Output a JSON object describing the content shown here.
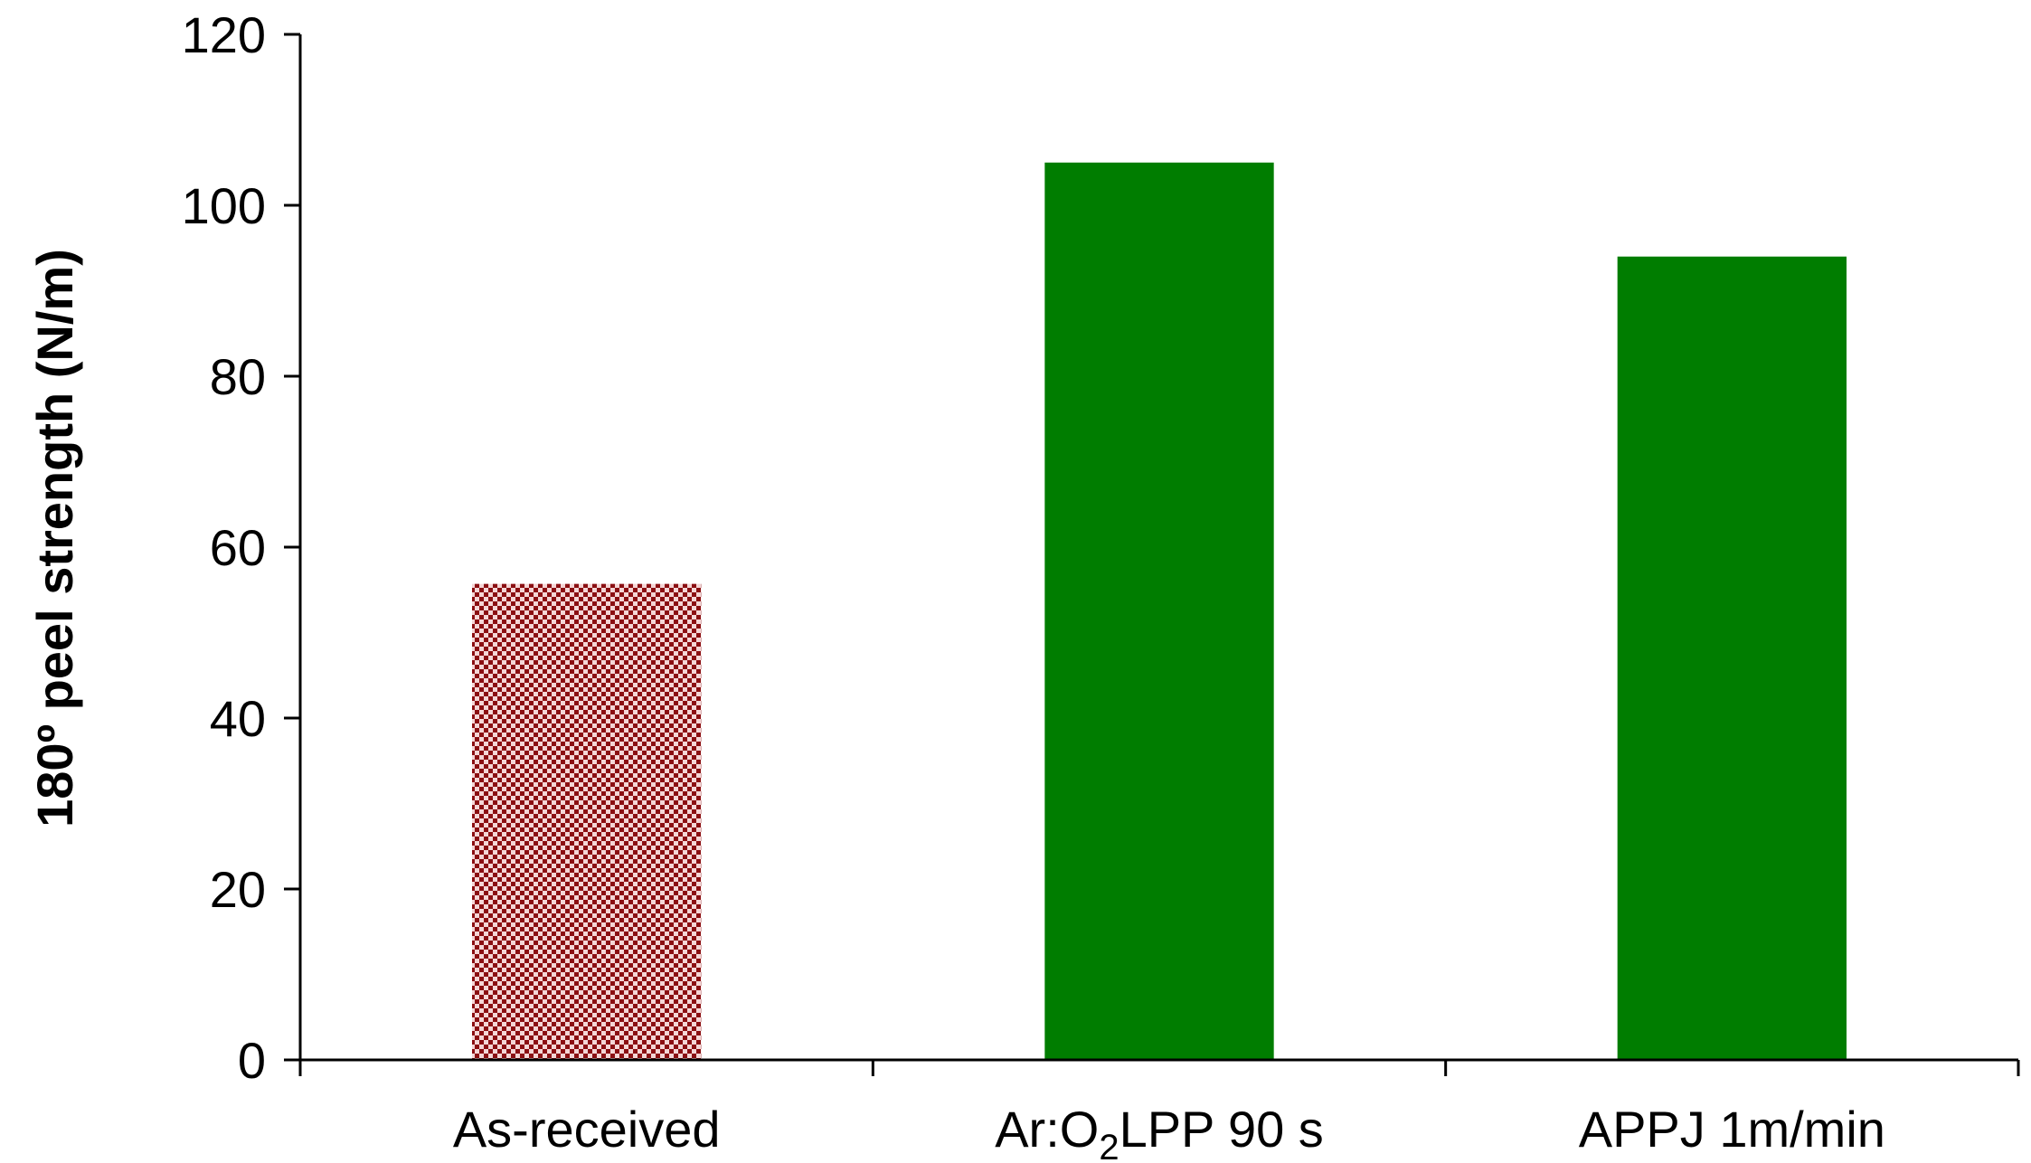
{
  "chart_data": {
    "type": "bar",
    "title": "",
    "xlabel": "",
    "ylabel": "180º peel strength (N/m)",
    "ylim": [
      0,
      120
    ],
    "yticks": [
      0,
      20,
      40,
      60,
      80,
      100,
      120
    ],
    "grid": false,
    "legend": "none",
    "categories": [
      {
        "label": "As-received",
        "label_main": "As-received",
        "label_sub": "",
        "label_tail": ""
      },
      {
        "label": "Ar:O2 LPP 90 s",
        "label_main": "Ar:O",
        "label_sub": "2",
        "label_tail": "LPP 90 s"
      },
      {
        "label": "APPJ 1m/min",
        "label_main": "APPJ 1m/min",
        "label_sub": "",
        "label_tail": ""
      }
    ],
    "values": [
      55.7,
      105.0,
      94.0
    ],
    "bar_styles": [
      "checker-red",
      "solid-green",
      "solid-green"
    ],
    "colors": {
      "checker_dark": "#8b0f12",
      "checker_light": "#f4d6d6",
      "green": "#007d00",
      "axis": "#000000"
    }
  }
}
